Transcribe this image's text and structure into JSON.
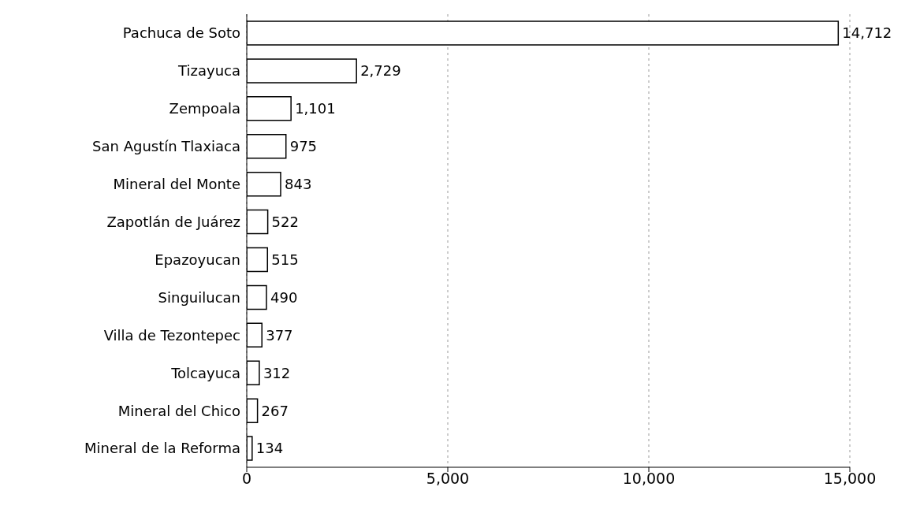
{
  "chart_data": {
    "type": "bar",
    "orientation": "horizontal",
    "categories": [
      "Pachuca de Soto",
      "Tizayuca",
      "Zempoala",
      "San Agustín Tlaxiaca",
      "Mineral del Monte",
      "Zapotlán de Juárez",
      "Epazoyucan",
      "Singuilucan",
      "Villa de Tezontepec",
      "Tolcayuca",
      "Mineral del Chico",
      "Mineral de la Reforma"
    ],
    "values": [
      14712,
      2729,
      1101,
      975,
      843,
      522,
      515,
      490,
      377,
      312,
      267,
      134
    ],
    "value_labels": [
      "14,712",
      "2,729",
      "1,101",
      "975",
      "843",
      "522",
      "515",
      "490",
      "377",
      "312",
      "267",
      "134"
    ],
    "color": "#ffffff",
    "xlim": [
      0,
      15000
    ],
    "xticks": [
      0,
      {
        "value": 5000,
        "label": "5,000"
      },
      {
        "value": 10000,
        "label": "10,000"
      },
      {
        "value": 15000,
        "label": "15,000"
      }
    ],
    "grid": "x"
  }
}
